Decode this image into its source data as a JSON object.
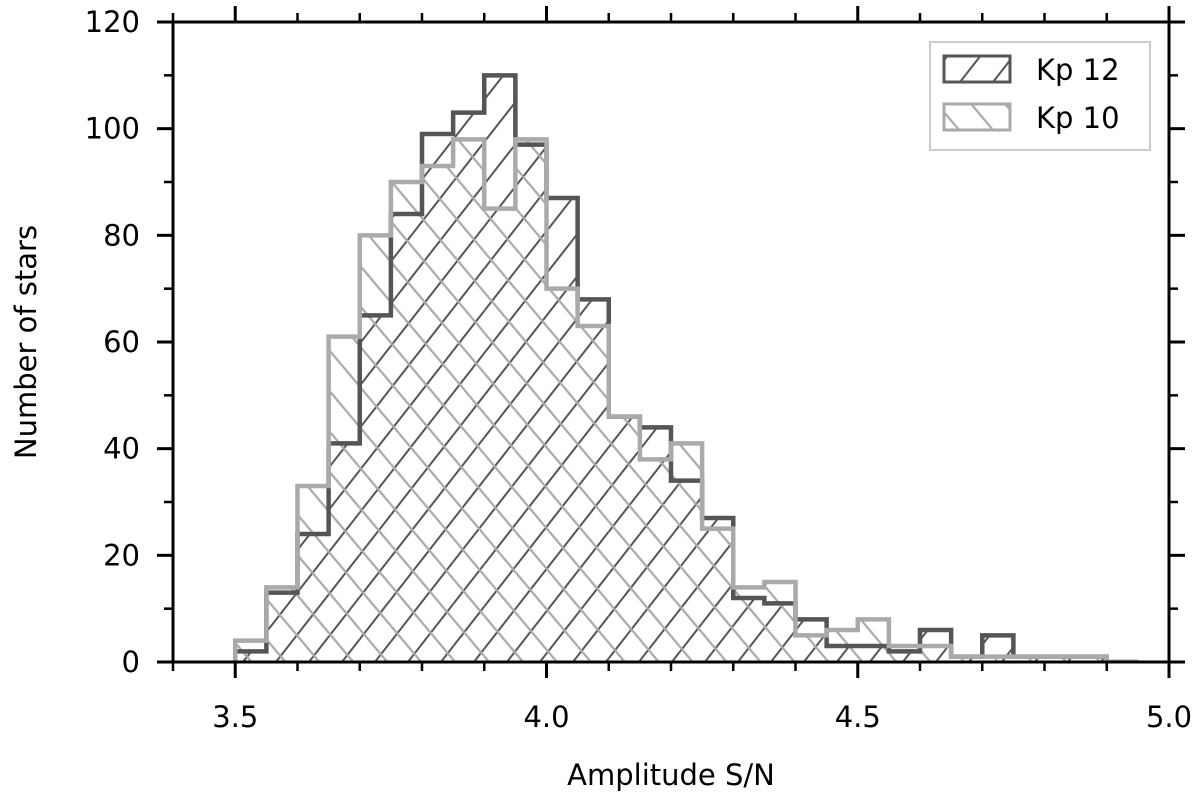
{
  "chart_data": {
    "type": "histogram",
    "title": "",
    "xlabel": "Amplitude S/N",
    "ylabel": "Number of stars",
    "xlim": [
      3.4,
      5.0
    ],
    "ylim": [
      0,
      120
    ],
    "xticks": [
      3.5,
      4.0,
      4.5,
      5.0
    ],
    "xtick_labels": [
      "3.5",
      "4.0",
      "4.5",
      "5.0"
    ],
    "yticks": [
      0,
      20,
      40,
      60,
      80,
      100,
      120
    ],
    "ytick_labels": [
      "0",
      "20",
      "40",
      "60",
      "80",
      "100",
      "120"
    ],
    "grid": false,
    "legend_position": "top-right",
    "bin_edges": [
      3.5,
      3.55,
      3.6,
      3.65,
      3.7,
      3.75,
      3.8,
      3.85,
      3.9,
      3.95,
      4.0,
      4.05,
      4.1,
      4.15,
      4.2,
      4.25,
      4.3,
      4.35,
      4.4,
      4.45,
      4.5,
      4.55,
      4.6,
      4.65,
      4.7,
      4.75,
      4.8,
      4.85,
      4.9,
      4.95
    ],
    "series": [
      {
        "name": "Kp 12",
        "color": "#555555",
        "hatch": "backslash",
        "values": [
          2,
          13,
          24,
          41,
          65,
          84,
          99,
          103,
          110,
          97,
          87,
          68,
          46,
          44,
          34,
          27,
          12,
          11,
          8,
          3,
          3,
          2,
          6,
          1,
          5,
          1,
          1,
          1,
          0
        ]
      },
      {
        "name": "Kp 10",
        "color": "#aaaaaa",
        "hatch": "slash",
        "values": [
          4,
          14,
          33,
          61,
          80,
          90,
          93,
          98,
          85,
          98,
          70,
          63,
          46,
          38,
          41,
          25,
          14,
          15,
          5,
          6,
          8,
          3,
          3,
          1,
          1,
          1,
          1,
          1,
          0
        ]
      }
    ]
  }
}
